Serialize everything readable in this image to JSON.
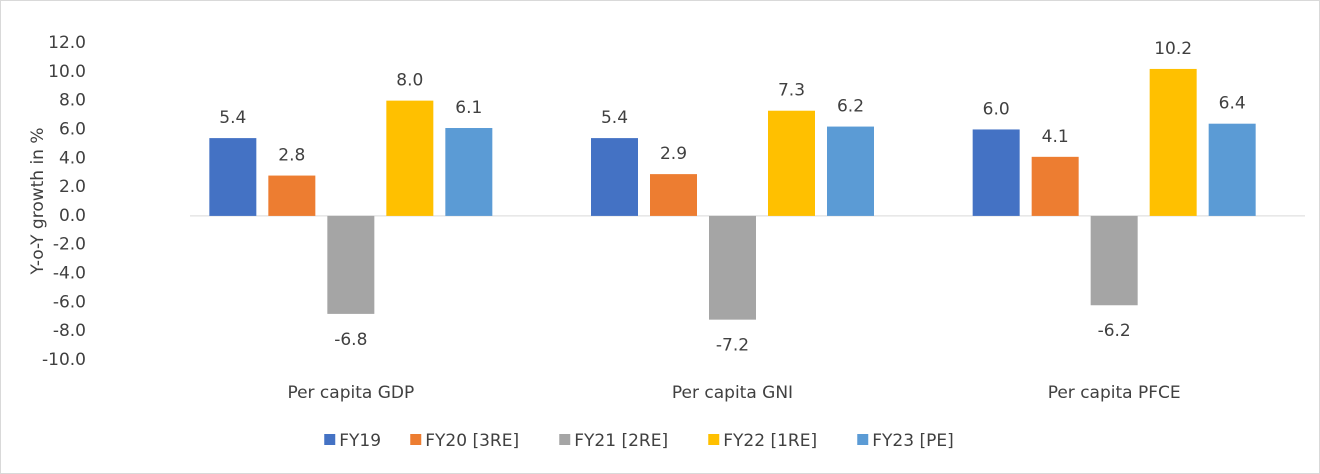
{
  "chart_data": {
    "type": "bar",
    "y_label": "Y-o-Y growth in %",
    "categories": [
      "Per capita GDP",
      "Per capita GNI",
      "Per capita PFCE"
    ],
    "series": [
      {
        "name": "FY19",
        "color": "#4472c4",
        "values": [
          5.4,
          5.4,
          6.0
        ],
        "value_labels": [
          "5.4",
          "5.4",
          "6.0"
        ]
      },
      {
        "name": "FY20 [3RE]",
        "color": "#ed7d31",
        "values": [
          2.8,
          2.9,
          4.1
        ],
        "value_labels": [
          "2.8",
          "2.9",
          "4.1"
        ]
      },
      {
        "name": "FY21 [2RE]",
        "color": "#a5a5a5",
        "values": [
          -6.8,
          -7.2,
          -6.2
        ],
        "value_labels": [
          "-6.8",
          "-7.2",
          "-6.2"
        ]
      },
      {
        "name": "FY22 [1RE]",
        "color": "#ffc000",
        "values": [
          8.0,
          7.3,
          10.2
        ],
        "value_labels": [
          "8.0",
          "7.3",
          "10.2"
        ]
      },
      {
        "name": "FY23 [PE]",
        "color": "#5b9bd5",
        "values": [
          6.1,
          6.2,
          6.4
        ],
        "value_labels": [
          "6.1",
          "6.2",
          "6.4"
        ]
      }
    ],
    "ylim": [
      -10,
      12
    ],
    "yticks": [
      {
        "value": -10,
        "label": "-10.0"
      },
      {
        "value": -8,
        "label": "-8.0"
      },
      {
        "value": -6,
        "label": "-6.0"
      },
      {
        "value": -4,
        "label": "-4.0"
      },
      {
        "value": -2,
        "label": "-2.0"
      },
      {
        "value": 0,
        "label": "0.0"
      },
      {
        "value": 2,
        "label": "2.0"
      },
      {
        "value": 4,
        "label": "4.0"
      },
      {
        "value": 6,
        "label": "6.0"
      },
      {
        "value": 8,
        "label": "8.0"
      },
      {
        "value": 10,
        "label": "10.0"
      },
      {
        "value": 12,
        "label": "12.0"
      }
    ],
    "legend": "bottom"
  }
}
